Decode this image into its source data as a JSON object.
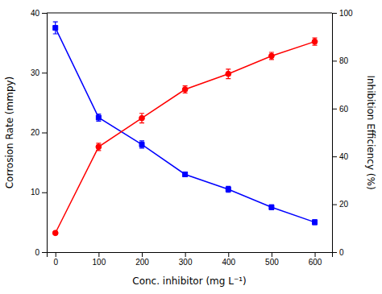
{
  "chart_data": {
    "type": "line",
    "x": [
      0,
      100,
      200,
      300,
      400,
      500,
      600
    ],
    "xlabel": "Conc. inhibitor (mg L⁻¹)",
    "ylabel": "Corrosion Rate (mmpy)",
    "y2label": "Inhibition Efficiency (%)",
    "xlim": [
      -20,
      640
    ],
    "xticks": [
      0,
      100,
      200,
      300,
      400,
      500,
      600
    ],
    "ylim": [
      0,
      40
    ],
    "yticks": [
      0,
      10,
      20,
      30,
      40
    ],
    "y2lim": [
      0,
      100
    ],
    "y2ticks": [
      0,
      20,
      40,
      60,
      80,
      100
    ],
    "grid": false,
    "series": [
      {
        "color": "#0000FF",
        "marker": "square",
        "values": [
          37.5,
          22.5,
          18.0,
          13.0,
          10.5,
          7.5,
          5.0
        ],
        "errors": [
          1.0,
          0.6,
          0.6,
          0.4,
          0.5,
          0.4,
          0.4
        ]
      },
      {
        "axis": "y2",
        "color": "#FF0000",
        "marker": "circle",
        "values": [
          8.0,
          44.0,
          56.0,
          68.0,
          74.5,
          82.0,
          88.0
        ],
        "errors": [
          0.5,
          1.5,
          2.0,
          1.5,
          2.0,
          1.5,
          1.5
        ]
      }
    ]
  }
}
